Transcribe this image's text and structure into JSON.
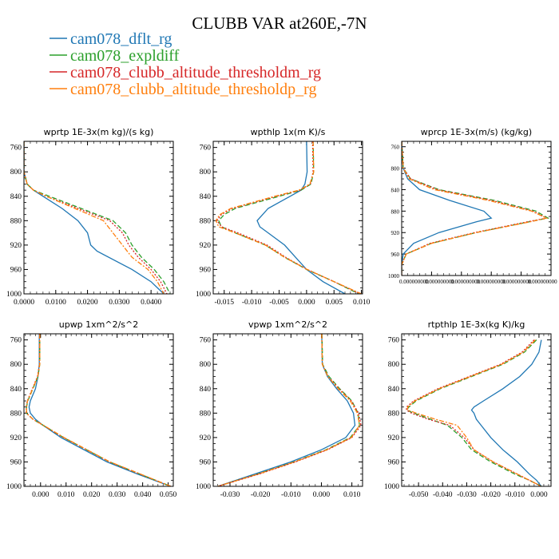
{
  "figure": {
    "title": "CLUBB VAR at260E,-7N",
    "legend": [
      {
        "label": "cam078_dflt_rg",
        "color": "#1f77b4",
        "dash": "none"
      },
      {
        "label": "cam078_expldiff",
        "color": "#2ca02c",
        "dash": "6,3"
      },
      {
        "label": "cam078_clubb_altitude_thresholdm_rg",
        "color": "#d62728",
        "dash": "2,2"
      },
      {
        "label": "cam078_clubb_altitude_thresholdp_rg",
        "color": "#ff7f0e",
        "dash": "6,2,2,2"
      }
    ]
  },
  "chart_data": [
    {
      "type": "line",
      "title": "wprtp  1E-3x(m kg)/(s kg)",
      "xlim": [
        0,
        0.047
      ],
      "ylim": [
        750,
        1000
      ],
      "y_inverted": true,
      "xticks": [
        0.0,
        0.01,
        0.02,
        0.03,
        0.04
      ],
      "xtick_labels": [
        "0.0000",
        "0.0100",
        "0.0200",
        "0.0300",
        "0.0400"
      ],
      "yticks": [
        760,
        800,
        840,
        880,
        920,
        960,
        1000
      ],
      "series": [
        {
          "name": "cam078_dflt_rg",
          "y": [
            750,
            800,
            820,
            830,
            840,
            860,
            880,
            900,
            920,
            930,
            960,
            980,
            990,
            1000
          ],
          "x": [
            0,
            0,
            0.001,
            0.003,
            0.006,
            0.012,
            0.017,
            0.02,
            0.021,
            0.023,
            0.034,
            0.04,
            0.042,
            0.044
          ]
        },
        {
          "name": "cam078_expldiff",
          "y": [
            750,
            800,
            820,
            830,
            840,
            860,
            880,
            900,
            920,
            940,
            960,
            980,
            1000
          ],
          "x": [
            0,
            0,
            0.001,
            0.003,
            0.008,
            0.018,
            0.028,
            0.032,
            0.034,
            0.037,
            0.041,
            0.044,
            0.046
          ]
        },
        {
          "name": "cam078_clubb_altitude_thresholdm_rg",
          "y": [
            750,
            800,
            820,
            830,
            840,
            860,
            880,
            900,
            920,
            940,
            960,
            980,
            1000
          ],
          "x": [
            0,
            0,
            0.001,
            0.003,
            0.007,
            0.017,
            0.027,
            0.031,
            0.033,
            0.036,
            0.04,
            0.043,
            0.045
          ]
        },
        {
          "name": "cam078_clubb_altitude_thresholdp_rg",
          "y": [
            750,
            800,
            820,
            830,
            840,
            860,
            880,
            900,
            920,
            940,
            960,
            980,
            1000
          ],
          "x": [
            0,
            0,
            0.001,
            0.003,
            0.007,
            0.016,
            0.025,
            0.028,
            0.031,
            0.034,
            0.039,
            0.042,
            0.044
          ]
        }
      ]
    },
    {
      "type": "line",
      "title": "wpthlp  1x(m K)/s",
      "xlim": [
        -0.017,
        0.0102
      ],
      "ylim": [
        750,
        1000
      ],
      "y_inverted": true,
      "xticks": [
        -0.015,
        -0.01,
        -0.005,
        0.0,
        0.005,
        0.01
      ],
      "xtick_labels": [
        "-0.015",
        "-0.010",
        "-0.005",
        "0.000",
        "0.005",
        "0.010"
      ],
      "yticks": [
        760,
        800,
        840,
        880,
        920,
        960,
        1000
      ],
      "series": [
        {
          "name": "cam078_dflt_rg",
          "y": [
            750,
            800,
            820,
            830,
            840,
            860,
            870,
            880,
            890,
            900,
            920,
            940,
            960,
            980,
            1000
          ],
          "x": [
            0.0,
            0.0001,
            -0.0003,
            -0.001,
            -0.003,
            -0.007,
            -0.008,
            -0.009,
            -0.0085,
            -0.007,
            -0.004,
            -0.002,
            0.0,
            0.003,
            0.007
          ]
        },
        {
          "name": "cam078_expldiff",
          "y": [
            750,
            800,
            820,
            830,
            840,
            860,
            870,
            880,
            890,
            900,
            920,
            940,
            960,
            980,
            1000
          ],
          "x": [
            0.0012,
            0.0013,
            0.0008,
            -0.001,
            -0.005,
            -0.013,
            -0.015,
            -0.016,
            -0.0155,
            -0.013,
            -0.0075,
            -0.004,
            0.0,
            0.005,
            0.0095
          ]
        },
        {
          "name": "cam078_clubb_altitude_thresholdm_rg",
          "y": [
            750,
            800,
            820,
            830,
            840,
            860,
            870,
            880,
            890,
            900,
            920,
            940,
            960,
            980,
            1000
          ],
          "x": [
            0.0011,
            0.0012,
            0.0007,
            -0.0012,
            -0.0055,
            -0.0135,
            -0.0155,
            -0.0163,
            -0.0155,
            -0.0125,
            -0.0072,
            -0.0038,
            0.0001,
            0.005,
            0.0098
          ]
        },
        {
          "name": "cam078_clubb_altitude_thresholdp_rg",
          "y": [
            750,
            800,
            820,
            830,
            840,
            860,
            870,
            880,
            890,
            900,
            920,
            940,
            960,
            980,
            1000
          ],
          "x": [
            0.0012,
            0.0013,
            0.0006,
            -0.0014,
            -0.0058,
            -0.0138,
            -0.0158,
            -0.0165,
            -0.016,
            -0.013,
            -0.0075,
            -0.004,
            0.0001,
            0.005,
            0.01
          ]
        }
      ]
    },
    {
      "type": "line",
      "title": "wprcp  1E-3x(m/s) (kg/kg)",
      "xlim": [
        0,
        1
      ],
      "ylim": [
        750,
        1000
      ],
      "y_inverted": true,
      "xticks": [
        0.0,
        0.2,
        0.4,
        0.6,
        0.8,
        1.0
      ],
      "xtick_labels": [
        "0.000000000",
        "0.000000000",
        "0.000000000",
        "0.000000000",
        "0.000000000",
        "0.000000000"
      ],
      "yticks": [
        760,
        800,
        840,
        880,
        920,
        960,
        1000
      ],
      "series": [
        {
          "name": "cam078_dflt_rg",
          "y": [
            750,
            800,
            820,
            840,
            860,
            880,
            893,
            900,
            920,
            940,
            960,
            980,
            1000
          ],
          "x": [
            0,
            0.01,
            0.04,
            0.12,
            0.32,
            0.55,
            0.6,
            0.5,
            0.25,
            0.08,
            0.01,
            0,
            0
          ]
        },
        {
          "name": "cam078_expldiff",
          "y": [
            750,
            800,
            820,
            840,
            860,
            880,
            893,
            900,
            920,
            940,
            960,
            980,
            1000
          ],
          "x": [
            0,
            0.01,
            0.06,
            0.25,
            0.62,
            0.9,
            0.98,
            0.85,
            0.5,
            0.2,
            0.03,
            0,
            0
          ]
        },
        {
          "name": "cam078_clubb_altitude_thresholdm_rg",
          "y": [
            750,
            800,
            820,
            840,
            860,
            880,
            893,
            900,
            920,
            940,
            960,
            980,
            1000
          ],
          "x": [
            0,
            0.01,
            0.06,
            0.24,
            0.6,
            0.88,
            0.97,
            0.84,
            0.49,
            0.19,
            0.03,
            0,
            0
          ]
        },
        {
          "name": "cam078_clubb_altitude_thresholdp_rg",
          "y": [
            750,
            800,
            820,
            840,
            860,
            880,
            893,
            900,
            920,
            940,
            960,
            980,
            1000
          ],
          "x": [
            0,
            0.01,
            0.05,
            0.22,
            0.58,
            0.87,
            0.97,
            0.86,
            0.5,
            0.2,
            0.03,
            0,
            0
          ]
        }
      ]
    },
    {
      "type": "line",
      "title": "upwp  1xm^2/s^2",
      "xlim": [
        -0.0065,
        0.052
      ],
      "ylim": [
        750,
        1000
      ],
      "y_inverted": true,
      "xticks": [
        0.0,
        0.01,
        0.02,
        0.03,
        0.04,
        0.05
      ],
      "xtick_labels": [
        "0.000",
        "0.010",
        "0.020",
        "0.030",
        "0.040",
        "0.050"
      ],
      "yticks": [
        760,
        800,
        840,
        880,
        920,
        960,
        1000
      ],
      "series": [
        {
          "name": "cam078_dflt_rg",
          "y": [
            750,
            800,
            820,
            840,
            860,
            870,
            880,
            890,
            900,
            920,
            940,
            960,
            980,
            1000
          ],
          "x": [
            -0.0005,
            -0.0005,
            -0.001,
            -0.002,
            -0.004,
            -0.0045,
            -0.004,
            -0.002,
            0.001,
            0.008,
            0.017,
            0.026,
            0.038,
            0.051
          ]
        },
        {
          "name": "cam078_expldiff",
          "y": [
            750,
            800,
            820,
            840,
            860,
            870,
            880,
            890,
            900,
            920,
            940,
            960,
            980,
            1000
          ],
          "x": [
            -0.0003,
            -0.0003,
            -0.001,
            -0.003,
            -0.005,
            -0.0055,
            -0.0055,
            -0.003,
            0.001,
            0.009,
            0.018,
            0.027,
            0.039,
            0.051
          ]
        },
        {
          "name": "cam078_clubb_altitude_thresholdm_rg",
          "y": [
            750,
            800,
            820,
            840,
            860,
            870,
            880,
            890,
            900,
            920,
            940,
            960,
            980,
            1000
          ],
          "x": [
            -0.0004,
            -0.0004,
            -0.0012,
            -0.0032,
            -0.0052,
            -0.0056,
            -0.0056,
            -0.003,
            0.001,
            0.009,
            0.018,
            0.027,
            0.039,
            0.051
          ]
        },
        {
          "name": "cam078_clubb_altitude_thresholdp_rg",
          "y": [
            750,
            800,
            820,
            840,
            860,
            870,
            880,
            890,
            900,
            920,
            940,
            960,
            980,
            1000
          ],
          "x": [
            -0.0003,
            -0.0003,
            -0.0011,
            -0.0031,
            -0.0051,
            -0.0055,
            -0.0055,
            -0.003,
            0.0012,
            0.0092,
            0.0182,
            0.0272,
            0.0392,
            0.051
          ]
        }
      ]
    },
    {
      "type": "line",
      "title": "vpwp  1xm^2/s^2",
      "xlim": [
        -0.0355,
        0.0135
      ],
      "ylim": [
        750,
        1000
      ],
      "y_inverted": true,
      "xticks": [
        -0.03,
        -0.02,
        -0.01,
        0.0,
        0.01
      ],
      "xtick_labels": [
        "-0.030",
        "-0.020",
        "-0.010",
        "0.000",
        "0.010"
      ],
      "yticks": [
        760,
        800,
        840,
        880,
        920,
        960,
        1000
      ],
      "series": [
        {
          "name": "cam078_dflt_rg",
          "y": [
            750,
            800,
            820,
            840,
            860,
            880,
            900,
            920,
            940,
            960,
            980,
            1000
          ],
          "x": [
            0.0001,
            0.0003,
            0.002,
            0.005,
            0.0085,
            0.0105,
            0.011,
            0.008,
            0.0,
            -0.01,
            -0.022,
            -0.034
          ]
        },
        {
          "name": "cam078_expldiff",
          "y": [
            750,
            800,
            820,
            840,
            860,
            880,
            900,
            920,
            940,
            960,
            980,
            1000
          ],
          "x": [
            0.0002,
            0.0004,
            0.0025,
            0.006,
            0.01,
            0.012,
            0.0125,
            0.0095,
            0.0015,
            -0.009,
            -0.021,
            -0.034
          ]
        },
        {
          "name": "cam078_clubb_altitude_thresholdm_rg",
          "y": [
            750,
            800,
            820,
            840,
            860,
            880,
            900,
            920,
            940,
            960,
            980,
            1000
          ],
          "x": [
            0.0001,
            0.0003,
            0.0022,
            0.0058,
            0.0098,
            0.0122,
            0.013,
            0.01,
            0.002,
            -0.0085,
            -0.0205,
            -0.034
          ]
        },
        {
          "name": "cam078_clubb_altitude_thresholdp_rg",
          "y": [
            750,
            800,
            820,
            840,
            860,
            880,
            900,
            920,
            940,
            960,
            980,
            1000
          ],
          "x": [
            0.0001,
            0.0003,
            0.0021,
            0.0055,
            0.0095,
            0.0118,
            0.0125,
            0.0098,
            0.0018,
            -0.0088,
            -0.0208,
            -0.034
          ]
        }
      ]
    },
    {
      "type": "line",
      "title": "rtpthlp  1E-3x(kg K)/kg",
      "xlim": [
        -0.057,
        0.005
      ],
      "ylim": [
        750,
        1000
      ],
      "y_inverted": true,
      "xticks": [
        -0.05,
        -0.04,
        -0.03,
        -0.02,
        -0.01,
        0.0
      ],
      "xtick_labels": [
        "-0.050",
        "-0.040",
        "-0.030",
        "-0.020",
        "-0.010",
        "0.000"
      ],
      "yticks": [
        760,
        800,
        840,
        880,
        920,
        960,
        1000
      ],
      "series": [
        {
          "name": "cam078_dflt_rg",
          "y": [
            760,
            780,
            800,
            820,
            840,
            860,
            870,
            875,
            880,
            890,
            900,
            920,
            940,
            960,
            980,
            990,
            1000
          ],
          "x": [
            0.001,
            0.0,
            -0.003,
            -0.008,
            -0.015,
            -0.023,
            -0.027,
            -0.028,
            -0.027,
            -0.026,
            -0.024,
            -0.02,
            -0.015,
            -0.009,
            -0.004,
            -0.001,
            0.001
          ]
        },
        {
          "name": "cam078_expldiff",
          "y": [
            760,
            780,
            800,
            820,
            840,
            860,
            870,
            875,
            880,
            890,
            900,
            920,
            940,
            960,
            980,
            990,
            1000
          ],
          "x": [
            -0.001,
            -0.006,
            -0.015,
            -0.028,
            -0.041,
            -0.051,
            -0.054,
            -0.055,
            -0.052,
            -0.045,
            -0.038,
            -0.032,
            -0.028,
            -0.02,
            -0.01,
            -0.004,
            0.001
          ]
        },
        {
          "name": "cam078_clubb_altitude_thresholdm_rg",
          "y": [
            760,
            780,
            800,
            820,
            840,
            860,
            870,
            875,
            880,
            890,
            900,
            920,
            940,
            960,
            980,
            990,
            1000
          ],
          "x": [
            -0.002,
            -0.007,
            -0.016,
            -0.029,
            -0.042,
            -0.052,
            -0.055,
            -0.055,
            -0.053,
            -0.046,
            -0.037,
            -0.031,
            -0.027,
            -0.019,
            -0.009,
            -0.004,
            0.001
          ]
        },
        {
          "name": "cam078_clubb_altitude_thresholdp_rg",
          "y": [
            760,
            780,
            800,
            820,
            840,
            860,
            870,
            875,
            880,
            890,
            900,
            920,
            940,
            960,
            980,
            990,
            1000
          ],
          "x": [
            -0.0015,
            -0.0065,
            -0.0155,
            -0.0285,
            -0.0415,
            -0.0515,
            -0.0545,
            -0.0545,
            -0.051,
            -0.043,
            -0.034,
            -0.03,
            -0.027,
            -0.019,
            -0.009,
            -0.004,
            0.001
          ]
        }
      ]
    }
  ]
}
